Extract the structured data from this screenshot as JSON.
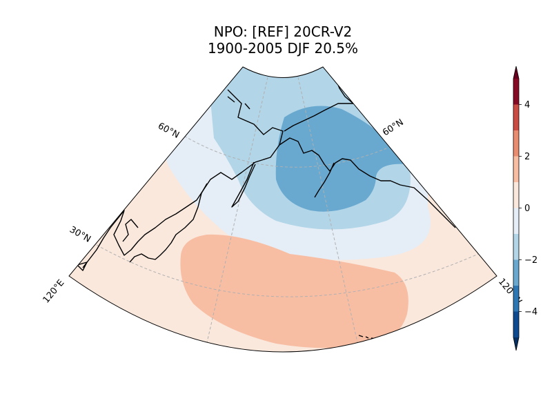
{
  "title": {
    "line1": "NPO: [REF] 20CR-V2",
    "line2": "1900-2005 DJF 20.5%"
  },
  "map": {
    "lat_labels": [
      "60°N",
      "60°N",
      "30°N"
    ],
    "lon_labels": [
      "120°E",
      "120°W"
    ],
    "colors": {
      "ocean_bg": "#fae8dd",
      "pos_1_3": "#f8bea4",
      "neg_0_1": "#e5eef6",
      "neg_1_2": "#b2d5e8",
      "neg_2_3": "#69a9d0",
      "coast": "#000000",
      "grid": "#b0b0b0"
    }
  },
  "colorbar": {
    "ticks": [
      "4",
      "2",
      "0",
      "−2",
      "−4"
    ],
    "levels": [
      {
        "range": "4 to 5",
        "color": "#870a24"
      },
      {
        "range": "3 to 4",
        "color": "#cb4a42"
      },
      {
        "range": "2 to 3",
        "color": "#ea8c6f"
      },
      {
        "range": "1 to 2",
        "color": "#f8bea4"
      },
      {
        "range": "0 to 1",
        "color": "#fae8dd"
      },
      {
        "range": "-1 to 0",
        "color": "#e5eef6"
      },
      {
        "range": "-2 to -1",
        "color": "#b2d5e8"
      },
      {
        "range": "-3 to -2",
        "color": "#69a9d0"
      },
      {
        "range": "-4 to -3",
        "color": "#2e77b5"
      },
      {
        "range": "-5 to -4",
        "color": "#0d4a90"
      }
    ],
    "over_color": "#67001f",
    "under_color": "#053061"
  }
}
